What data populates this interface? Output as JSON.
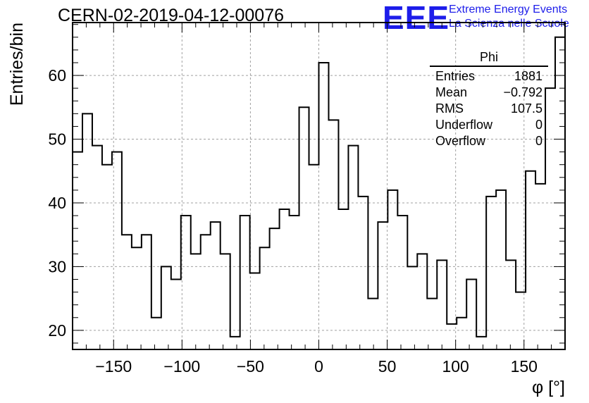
{
  "header": {
    "title": "CERN-02-2019-04-12-00076",
    "logo": "EEE",
    "logo_line1": "Extreme Energy Events",
    "logo_line2": "La Scienza nelle Scuole"
  },
  "stats": {
    "name": "Phi",
    "rows": [
      {
        "label": "Entries",
        "value": "1881"
      },
      {
        "label": "Mean",
        "value": "−0.792"
      },
      {
        "label": "RMS",
        "value": "107.5"
      },
      {
        "label": "Underflow",
        "value": "0"
      },
      {
        "label": "Overflow",
        "value": "0"
      }
    ]
  },
  "chart_data": {
    "type": "bar",
    "style": "step-histogram",
    "xlabel": "φ [°]",
    "ylabel": "Entries/bin",
    "xlim": [
      -180,
      180
    ],
    "ylim": [
      17,
      68.3
    ],
    "bin_width": 7.2,
    "grid": true,
    "x_ticks": [
      -150,
      -100,
      -50,
      0,
      50,
      100,
      150
    ],
    "x_tick_labels": [
      "−150",
      "−100",
      "−50",
      "0",
      "50",
      "100",
      "150"
    ],
    "y_ticks": [
      20,
      30,
      40,
      50,
      60
    ],
    "y_tick_labels": [
      "20",
      "30",
      "40",
      "50",
      "60"
    ],
    "values": [
      48,
      54,
      49,
      46,
      48,
      35,
      33,
      35,
      22,
      30,
      28,
      38,
      32,
      35,
      37,
      32,
      19,
      38,
      29,
      33,
      36,
      39,
      38,
      55,
      46,
      62,
      53,
      39,
      49,
      41,
      25,
      37,
      42,
      38,
      30,
      32,
      25,
      31,
      21,
      22,
      28,
      19,
      41,
      42,
      31,
      26,
      45,
      43,
      58,
      66
    ],
    "colors": {
      "line": "#000000",
      "grid": "#a0a0a0"
    }
  }
}
